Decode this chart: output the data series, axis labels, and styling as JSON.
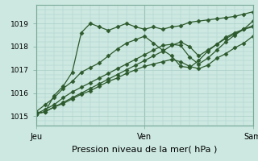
{
  "bg_color": "#cce8e0",
  "grid_color": "#aacfc8",
  "line_color": "#2d5a2d",
  "marker": "D",
  "marker_size": 2.5,
  "linewidth": 0.9,
  "xlabel": "Pression niveau de la mer( hPa )",
  "xlabel_fontsize": 8,
  "ylim": [
    1014.6,
    1019.8
  ],
  "yticks": [
    1015,
    1016,
    1017,
    1018,
    1019
  ],
  "ytick_fontsize": 6.5,
  "xtick_labels": [
    "Jeu",
    "Ven",
    "Sam"
  ],
  "xtick_positions": [
    0,
    24,
    48
  ],
  "xtick_fontsize": 7,
  "series": [
    [
      1015.1,
      1015.2,
      1015.9,
      1016.3,
      1016.9,
      1018.6,
      1019.0,
      1018.85,
      1018.7,
      1018.85,
      1019.0,
      1018.85,
      1018.75,
      1018.85,
      1018.75,
      1018.85,
      1018.9,
      1019.05,
      1019.1,
      1019.15,
      1019.2,
      1019.25,
      1019.3,
      1019.4,
      1019.5
    ],
    [
      1015.2,
      1015.5,
      1015.8,
      1016.2,
      1016.5,
      1016.9,
      1017.1,
      1017.3,
      1017.6,
      1017.9,
      1018.15,
      1018.3,
      1018.45,
      1018.15,
      1017.85,
      1017.6,
      1017.15,
      1017.1,
      1017.4,
      1017.8,
      1018.1,
      1018.35,
      1018.55,
      1018.75,
      1018.9
    ],
    [
      1015.1,
      1015.3,
      1015.5,
      1015.8,
      1016.05,
      1016.25,
      1016.45,
      1016.65,
      1016.85,
      1017.05,
      1017.25,
      1017.45,
      1017.65,
      1017.85,
      1018.05,
      1018.1,
      1018.05,
      1017.55,
      1017.25,
      1017.5,
      1017.85,
      1018.2,
      1018.5,
      1018.75,
      1019.1
    ],
    [
      1015.1,
      1015.2,
      1015.4,
      1015.6,
      1015.8,
      1016.0,
      1016.2,
      1016.4,
      1016.6,
      1016.8,
      1017.0,
      1017.2,
      1017.4,
      1017.6,
      1017.8,
      1018.05,
      1018.2,
      1018.0,
      1017.6,
      1017.85,
      1018.1,
      1018.4,
      1018.6,
      1018.75,
      1018.85
    ],
    [
      1015.1,
      1015.2,
      1015.4,
      1015.55,
      1015.75,
      1015.95,
      1016.1,
      1016.3,
      1016.5,
      1016.65,
      1016.85,
      1017.0,
      1017.15,
      1017.25,
      1017.35,
      1017.45,
      1017.35,
      1017.15,
      1017.05,
      1017.2,
      1017.5,
      1017.7,
      1017.95,
      1018.15,
      1018.45
    ]
  ]
}
